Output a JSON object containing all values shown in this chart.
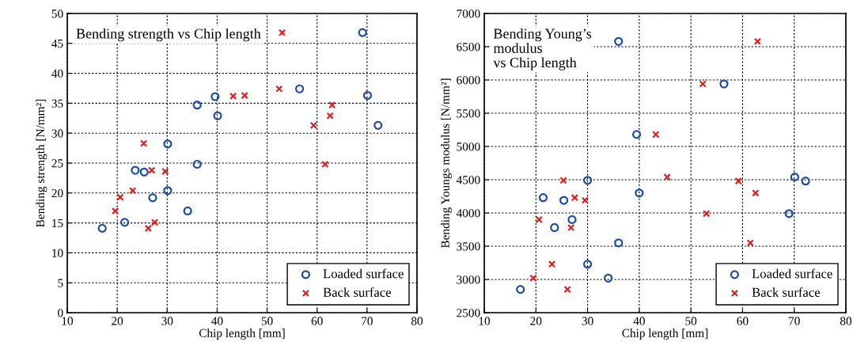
{
  "chart_data": [
    {
      "type": "scatter",
      "title": "Bending strength vs Chip length",
      "xlabel": "Chip length [mm]",
      "ylabel": "Bending strength [N/mm²]",
      "xlim": [
        10,
        80
      ],
      "xticks": [
        10,
        20,
        30,
        40,
        50,
        60,
        70,
        80
      ],
      "ylim": [
        0,
        50
      ],
      "yticks": [
        0,
        5,
        10,
        15,
        20,
        25,
        30,
        35,
        40,
        45,
        50
      ],
      "grid": true,
      "legend": "bottom right",
      "series": [
        {
          "name": "Loaded surface",
          "color": "#1f4ea6",
          "marker": "circle",
          "x": [
            17.0,
            21.5,
            23.6,
            25.4,
            27.1,
            30.1,
            30.1,
            34.1,
            36.0,
            36.0,
            39.6,
            40.1,
            56.5,
            69.1,
            70.1,
            72.2
          ],
          "values": [
            14.1,
            15.1,
            23.8,
            23.5,
            19.2,
            28.2,
            20.4,
            17.0,
            34.7,
            24.8,
            36.1,
            32.9,
            37.4,
            46.8,
            36.3,
            31.3
          ]
        },
        {
          "name": "Back surface",
          "color": "#e02020",
          "marker": "cross",
          "x": [
            19.6,
            20.6,
            23.1,
            25.3,
            26.2,
            26.9,
            27.5,
            29.6,
            43.2,
            45.5,
            52.4,
            53.0,
            59.3,
            61.6,
            62.6,
            63.0
          ],
          "values": [
            17.0,
            19.3,
            20.4,
            28.3,
            14.1,
            23.8,
            15.1,
            23.6,
            36.2,
            36.3,
            37.4,
            46.8,
            31.3,
            24.8,
            32.9,
            34.7
          ]
        }
      ]
    },
    {
      "type": "scatter",
      "title": "Bending Young’s\nmodulus\nvs Chip length",
      "xlabel": "Chip length [mm]",
      "ylabel": "Bending Youngs modulus [N/mm²]",
      "xlim": [
        10,
        80
      ],
      "xticks": [
        10,
        20,
        30,
        40,
        50,
        60,
        70,
        80
      ],
      "ylim": [
        2500,
        7000
      ],
      "yticks": [
        2500,
        3000,
        3500,
        4000,
        4500,
        5000,
        5500,
        6000,
        6500,
        7000
      ],
      "grid": true,
      "legend": "bottom right",
      "series": [
        {
          "name": "Loaded surface",
          "color": "#1f4ea6",
          "marker": "circle",
          "x": [
            17.0,
            21.4,
            23.6,
            25.4,
            27.0,
            30.0,
            30.0,
            34.0,
            36.0,
            36.0,
            39.5,
            40.0,
            56.4,
            69.0,
            70.1,
            72.2
          ],
          "values": [
            2850,
            4230,
            3780,
            4190,
            3900,
            4490,
            3230,
            3020,
            3550,
            6580,
            5180,
            4300,
            5940,
            3990,
            4540,
            4480
          ]
        },
        {
          "name": "Back surface",
          "color": "#e02020",
          "marker": "cross",
          "x": [
            19.5,
            20.6,
            23.1,
            25.3,
            26.1,
            26.8,
            27.5,
            29.5,
            43.2,
            45.4,
            52.3,
            53.0,
            59.2,
            61.5,
            62.5,
            62.9
          ],
          "values": [
            3020,
            3900,
            3230,
            4490,
            2850,
            3780,
            4230,
            4190,
            5180,
            4540,
            5940,
            3990,
            4480,
            3550,
            4300,
            6580
          ]
        }
      ]
    }
  ]
}
